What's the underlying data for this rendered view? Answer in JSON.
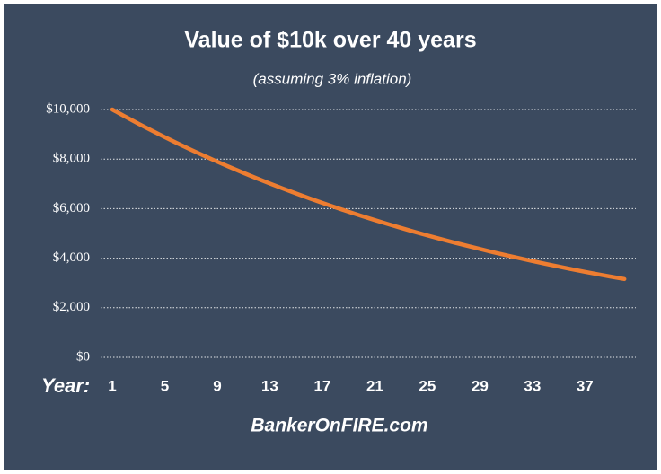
{
  "chart_data": {
    "type": "line",
    "title": "Value of $10k over 40 years",
    "subtitle": "(assuming 3% inflation)",
    "x_label": "Year:",
    "source": "BankerOnFIRE.com",
    "categories": [
      "1",
      null,
      null,
      null,
      "5",
      null,
      null,
      null,
      "9",
      null,
      null,
      null,
      "13",
      null,
      null,
      null,
      "17",
      null,
      null,
      null,
      "21",
      null,
      null,
      null,
      "25",
      null,
      null,
      null,
      "29",
      null,
      null,
      null,
      "33",
      null,
      null,
      null,
      "37",
      null,
      null,
      null
    ],
    "series": [
      {
        "name": "Value",
        "color": "#ed7d31",
        "values": [
          10000,
          9709,
          9426,
          9151,
          8885,
          8626,
          8375,
          8131,
          7894,
          7664,
          7441,
          7224,
          7014,
          6810,
          6611,
          6419,
          6232,
          6050,
          5874,
          5703,
          5537,
          5375,
          5219,
          5067,
          4919,
          4776,
          4637,
          4502,
          4371,
          4243,
          4120,
          4000,
          3883,
          3770,
          3660,
          3554,
          3450,
          3350,
          3252,
          3158
        ]
      }
    ],
    "ylim": [
      0,
      10000
    ],
    "yticks": [
      {
        "value": 0,
        "label": "$0"
      },
      {
        "value": 2000,
        "label": "$2,000"
      },
      {
        "value": 4000,
        "label": "$4,000"
      },
      {
        "value": 6000,
        "label": "$6,000"
      },
      {
        "value": 8000,
        "label": "$8,000"
      },
      {
        "value": 10000,
        "label": "$10,000"
      }
    ],
    "grid": true
  }
}
